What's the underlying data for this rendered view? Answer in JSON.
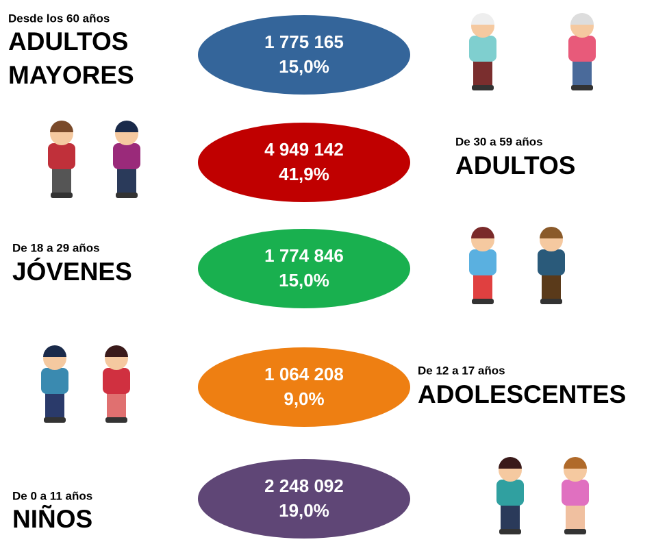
{
  "rows": [
    {
      "range": "Desde los 60 años",
      "title": [
        "ADULTOS",
        "MAYORES"
      ],
      "count": "1 775 165",
      "percent": "15,0%",
      "color": "#34659a"
    },
    {
      "range": "De 30 a 59 años",
      "title": [
        "ADULTOS"
      ],
      "count": "4 949 142",
      "percent": "41,9%",
      "color": "#c00000"
    },
    {
      "range": "De 18 a 29 años",
      "title": [
        "JÓVENES"
      ],
      "count": "1 774 846",
      "percent": "15,0%",
      "color": "#19b04f"
    },
    {
      "range": "De 12 a 17 años",
      "title": [
        "ADOLESCENTES"
      ],
      "count": "1 064 208",
      "percent": "9,0%",
      "color": "#ee7f12"
    },
    {
      "range": "De 0 a 11 años",
      "title": [
        "NIÑOS"
      ],
      "count": "2 248 092",
      "percent": "19,0%",
      "color": "#5f4676"
    }
  ]
}
